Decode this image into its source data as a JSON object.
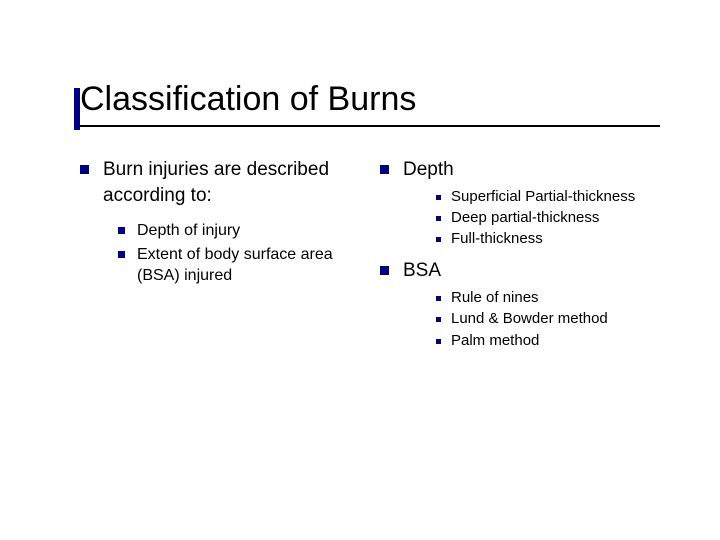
{
  "slide": {
    "title": "Classification of Burns",
    "left": {
      "main": "Burn injuries are described according to:",
      "sub": [
        "Depth of injury",
        "Extent of body surface area (BSA) injured"
      ]
    },
    "right": {
      "section1": {
        "heading": "Depth",
        "items": [
          "Superficial Partial-thickness",
          "Deep partial-thickness",
          "Full-thickness"
        ]
      },
      "section2": {
        "heading": "BSA",
        "items": [
          "Rule of nines",
          "Lund & Bowder method",
          "Palm method"
        ]
      }
    }
  },
  "style": {
    "bullet_color": "#000080",
    "text_color": "#000000",
    "background": "#ffffff",
    "title_fontsize": 34,
    "l1_fontsize": 19,
    "l2_fontsize": 16,
    "l3_fontsize": 15
  }
}
